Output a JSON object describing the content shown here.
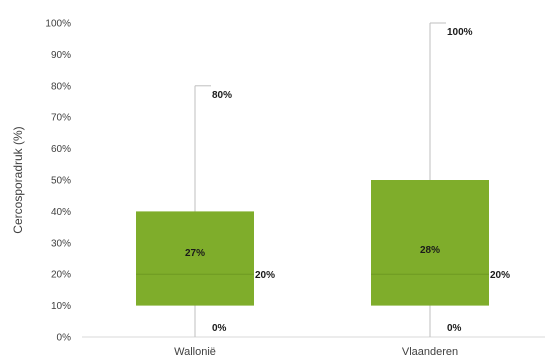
{
  "chart_data": {
    "type": "boxplot",
    "ylabel": "Cercosporadruk (%)",
    "ylim": [
      0,
      100
    ],
    "y_ticks": [
      "0%",
      "10%",
      "20%",
      "30%",
      "40%",
      "50%",
      "60%",
      "70%",
      "80%",
      "90%",
      "100%"
    ],
    "categories": [
      "Wallonië",
      "Vlaanderen"
    ],
    "boxes": [
      {
        "category": "Wallonië",
        "min": 0,
        "q1": 10,
        "median": 20,
        "q3": 40,
        "max": 80,
        "mean": 27,
        "labels": {
          "max": "80%",
          "mean": "27%",
          "median": "20%",
          "min": "0%"
        }
      },
      {
        "category": "Vlaanderen",
        "min": 0,
        "q1": 10,
        "median": 20,
        "q3": 50,
        "max": 100,
        "mean": 28,
        "labels": {
          "max": "100%",
          "mean": "28%",
          "median": "20%",
          "min": "0%"
        }
      }
    ],
    "box_color": "#7fad2b",
    "whisker_color": "#bfbfbf",
    "grid": false
  }
}
